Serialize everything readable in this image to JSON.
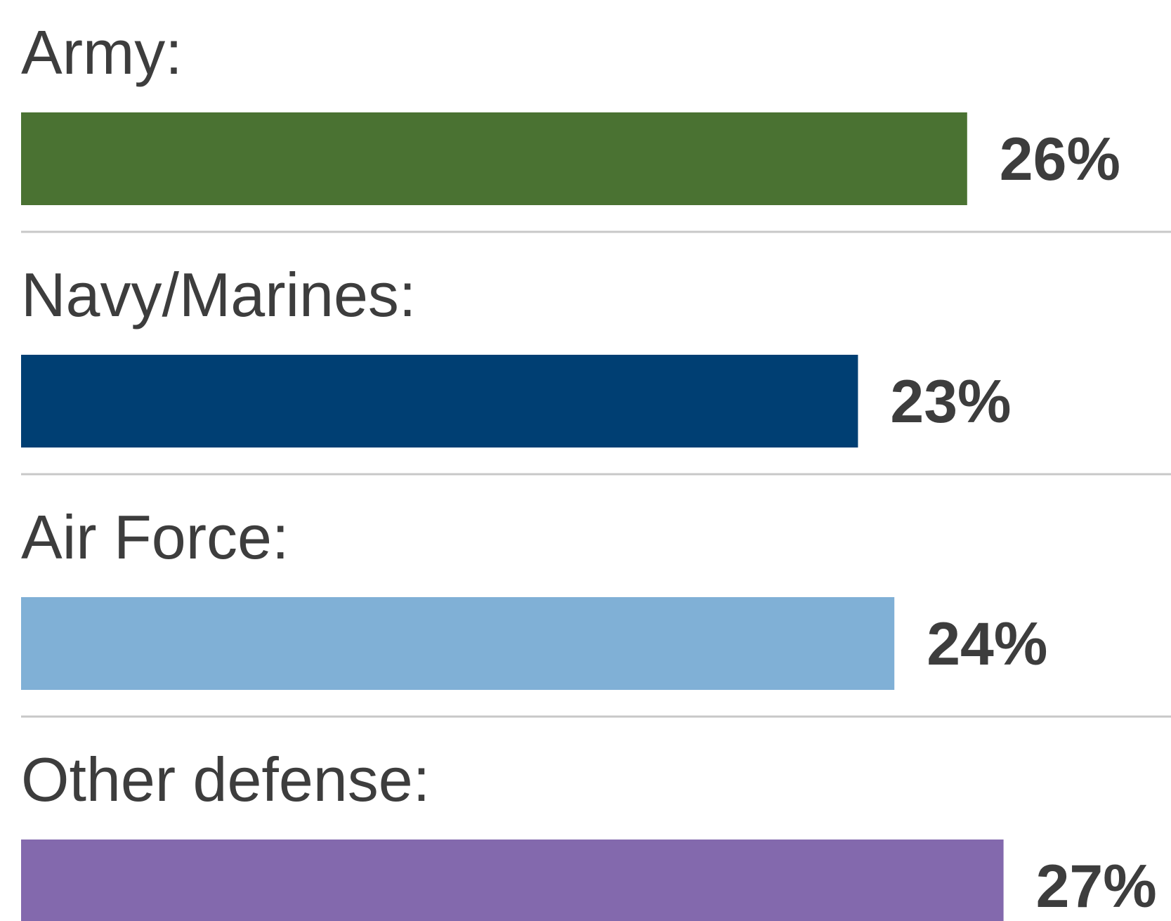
{
  "chart_data": {
    "type": "bar",
    "orientation": "horizontal",
    "categories": [
      "Army:",
      "Navy/Marines:",
      "Air Force:",
      "Other defense:"
    ],
    "values": [
      26,
      23,
      24,
      27
    ],
    "value_labels": [
      "26%",
      "23%",
      "24%",
      "27%"
    ],
    "unit": "%",
    "colors": [
      "#4a7232",
      "#003f73",
      "#80b0d6",
      "#8369ad"
    ],
    "divider_color": "#c8c8c8",
    "label_color": "#3d3d3d",
    "grid": false,
    "legend": "none",
    "title": "",
    "xlabel": "",
    "ylabel": ""
  }
}
